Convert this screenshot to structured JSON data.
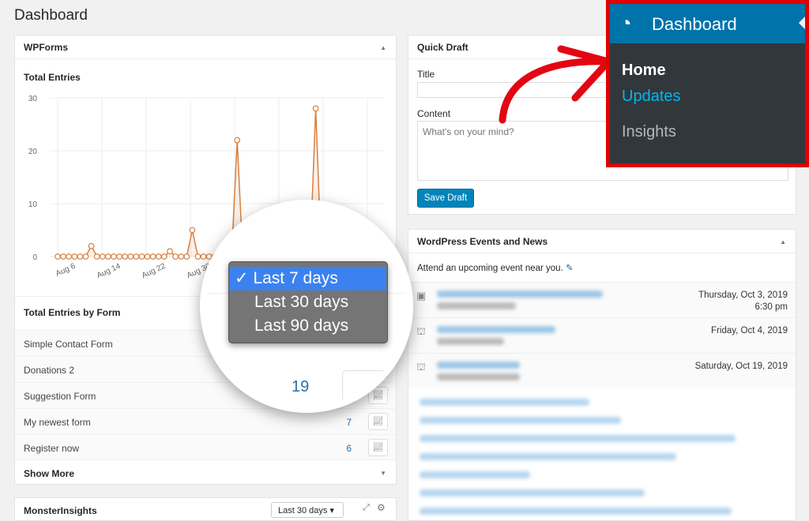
{
  "page_title": "Dashboard",
  "wpforms": {
    "title": "WPForms",
    "chart_title": "Total Entries",
    "by_form_title": "Total Entries by Form",
    "forms": [
      {
        "name": "Simple Contact Form",
        "count": ""
      },
      {
        "name": "Donations 2",
        "count": ""
      },
      {
        "name": "Suggestion Form",
        "count": ""
      },
      {
        "name": "My newest form",
        "count": "7"
      },
      {
        "name": "Register now",
        "count": "6"
      }
    ],
    "show_more": "Show More"
  },
  "chart_data": {
    "type": "line",
    "title": "Total Entries",
    "ylim": [
      0,
      30
    ],
    "yticks": [
      0,
      10,
      20,
      30
    ],
    "xtick_labels": [
      "Aug 6",
      "Aug 14",
      "Aug 22",
      "Aug 30"
    ],
    "grid": true,
    "color": "#d87f3f",
    "x_start": "Aug 5",
    "values": [
      0,
      0,
      0,
      0,
      0,
      0,
      2,
      0,
      0,
      0,
      0,
      0,
      0,
      0,
      0,
      0,
      0,
      0,
      0,
      0,
      1,
      0,
      0,
      0,
      5,
      0,
      0,
      0,
      0,
      0,
      0,
      0,
      22,
      0,
      0,
      0,
      0,
      0,
      0,
      0,
      0,
      0,
      0,
      0,
      0,
      0,
      28,
      0,
      0,
      0,
      0,
      0,
      0,
      0,
      0,
      0,
      0,
      0,
      0
    ]
  },
  "magnifier": {
    "options": [
      {
        "label": "Last 7 days",
        "selected": true
      },
      {
        "label": "Last 30 days",
        "selected": false
      },
      {
        "label": "Last 90 days",
        "selected": false
      }
    ],
    "check": "✓",
    "count": "19"
  },
  "monsterinsights": {
    "title": "MonsterInsights",
    "range": "Last 30 days"
  },
  "quick_draft": {
    "title": "Quick Draft",
    "title_label": "Title",
    "content_label": "Content",
    "content_placeholder": "What's on your mind?",
    "save": "Save Draft"
  },
  "events": {
    "title": "WordPress Events and News",
    "intro": "Attend an upcoming event near you.",
    "items": [
      {
        "date": "Thursday, Oct 3, 2019",
        "time": "6:30 pm",
        "icon": "meetup-icon"
      },
      {
        "date": "Friday, Oct 4, 2019",
        "time": "",
        "icon": "wordcamp-icon"
      },
      {
        "date": "Saturday, Oct 19, 2019",
        "time": "",
        "icon": "wordcamp-icon"
      }
    ]
  },
  "menu": {
    "header": "Dashboard",
    "items": [
      {
        "label": "Home",
        "color": "#ffffff"
      },
      {
        "label": "Updates",
        "color": "#00b9eb"
      },
      {
        "label": "Insights",
        "color": "#b4b9be"
      }
    ]
  },
  "colors": {
    "accent": "#0073aa",
    "highlight": "#e00000",
    "menu_bg": "#32373c"
  }
}
